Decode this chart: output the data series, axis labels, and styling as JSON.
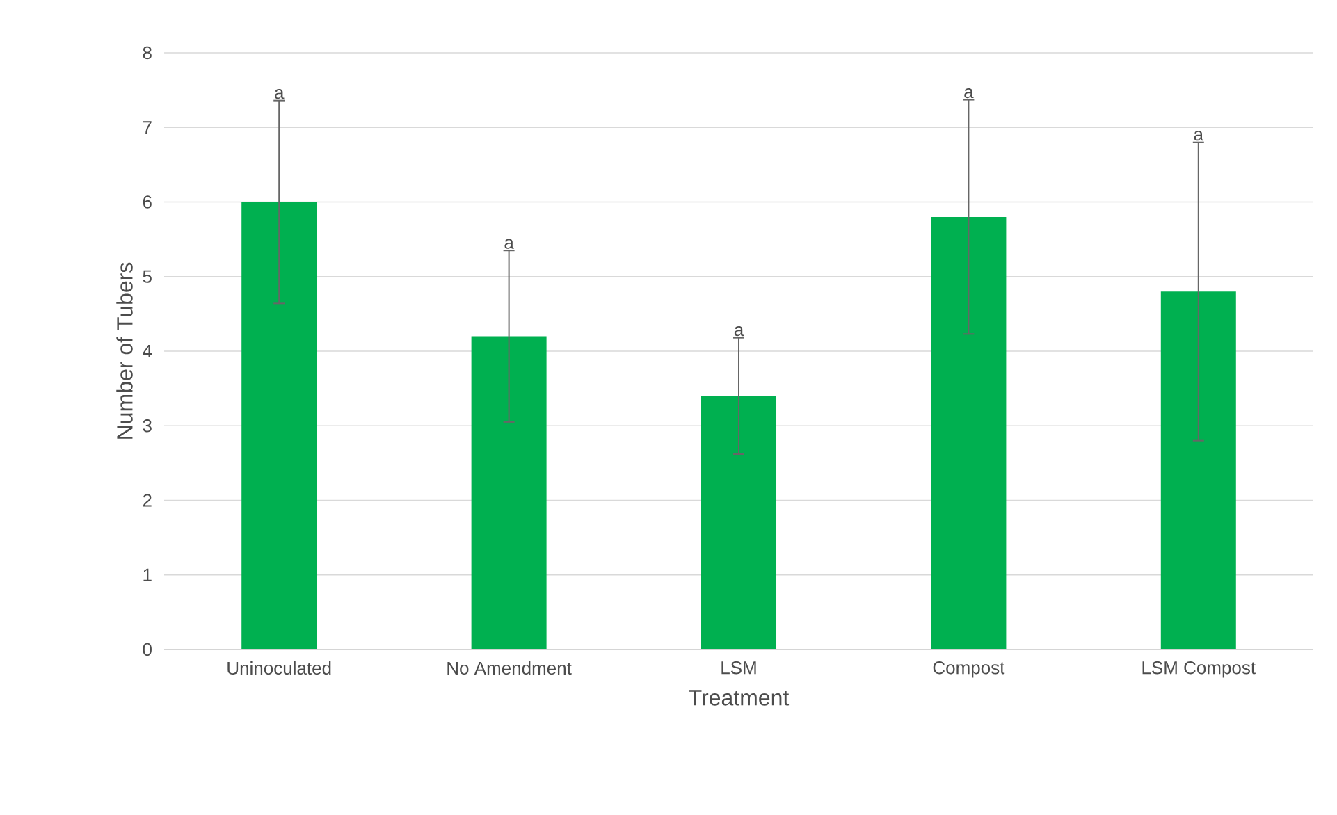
{
  "chart_data": {
    "type": "bar",
    "xlabel": "Treatment",
    "ylabel": "Number of Tubers",
    "categories": [
      "Uninoculated",
      "No Amendment",
      "LSM",
      "Compost",
      "LSM Compost"
    ],
    "values": [
      6.0,
      4.2,
      3.4,
      5.8,
      4.8
    ],
    "errors": [
      1.36,
      1.15,
      0.78,
      1.57,
      2.0
    ],
    "color": "#00b050",
    "ylim": [
      0,
      8
    ],
    "yticks": [
      0,
      1,
      2,
      3,
      4,
      5,
      6,
      7,
      8
    ],
    "grid": "y",
    "annotations": [
      {
        "text": "a",
        "x": "Uninoculated",
        "y": 7.36
      },
      {
        "text": "a",
        "x": "No Amendment",
        "y": 5.35
      },
      {
        "text": "a",
        "x": "LSM",
        "y": 4.18
      },
      {
        "text": "a",
        "x": "Compost",
        "y": 7.37
      },
      {
        "text": "a",
        "x": "LSM Compost",
        "y": 6.8
      }
    ]
  }
}
